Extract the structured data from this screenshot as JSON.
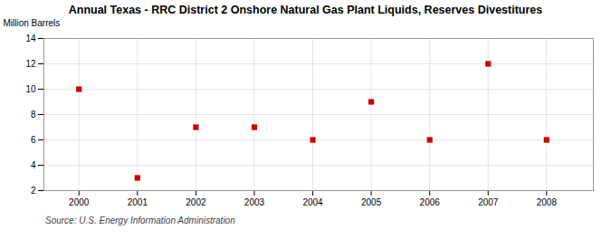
{
  "chart_data": {
    "type": "scatter",
    "title": "Annual Texas - RRC District 2 Onshore Natural Gas Plant Liquids, Reserves Divestitures",
    "ylabel": "Million Barrels",
    "source": "Source: U.S. Energy Information Administration",
    "x": [
      2000,
      2001,
      2002,
      2003,
      2004,
      2005,
      2006,
      2007,
      2008
    ],
    "values": [
      10,
      3,
      7,
      7,
      6,
      9,
      6,
      12,
      6
    ],
    "color": "#cc0000",
    "marker": "square",
    "xlim": [
      1999.4,
      2008.8
    ],
    "xticks": [
      2000,
      2001,
      2002,
      2003,
      2004,
      2005,
      2006,
      2007,
      2008
    ],
    "ylim": [
      2,
      14
    ],
    "yticks": [
      2,
      4,
      6,
      8,
      10,
      12,
      14
    ],
    "grid": true
  }
}
